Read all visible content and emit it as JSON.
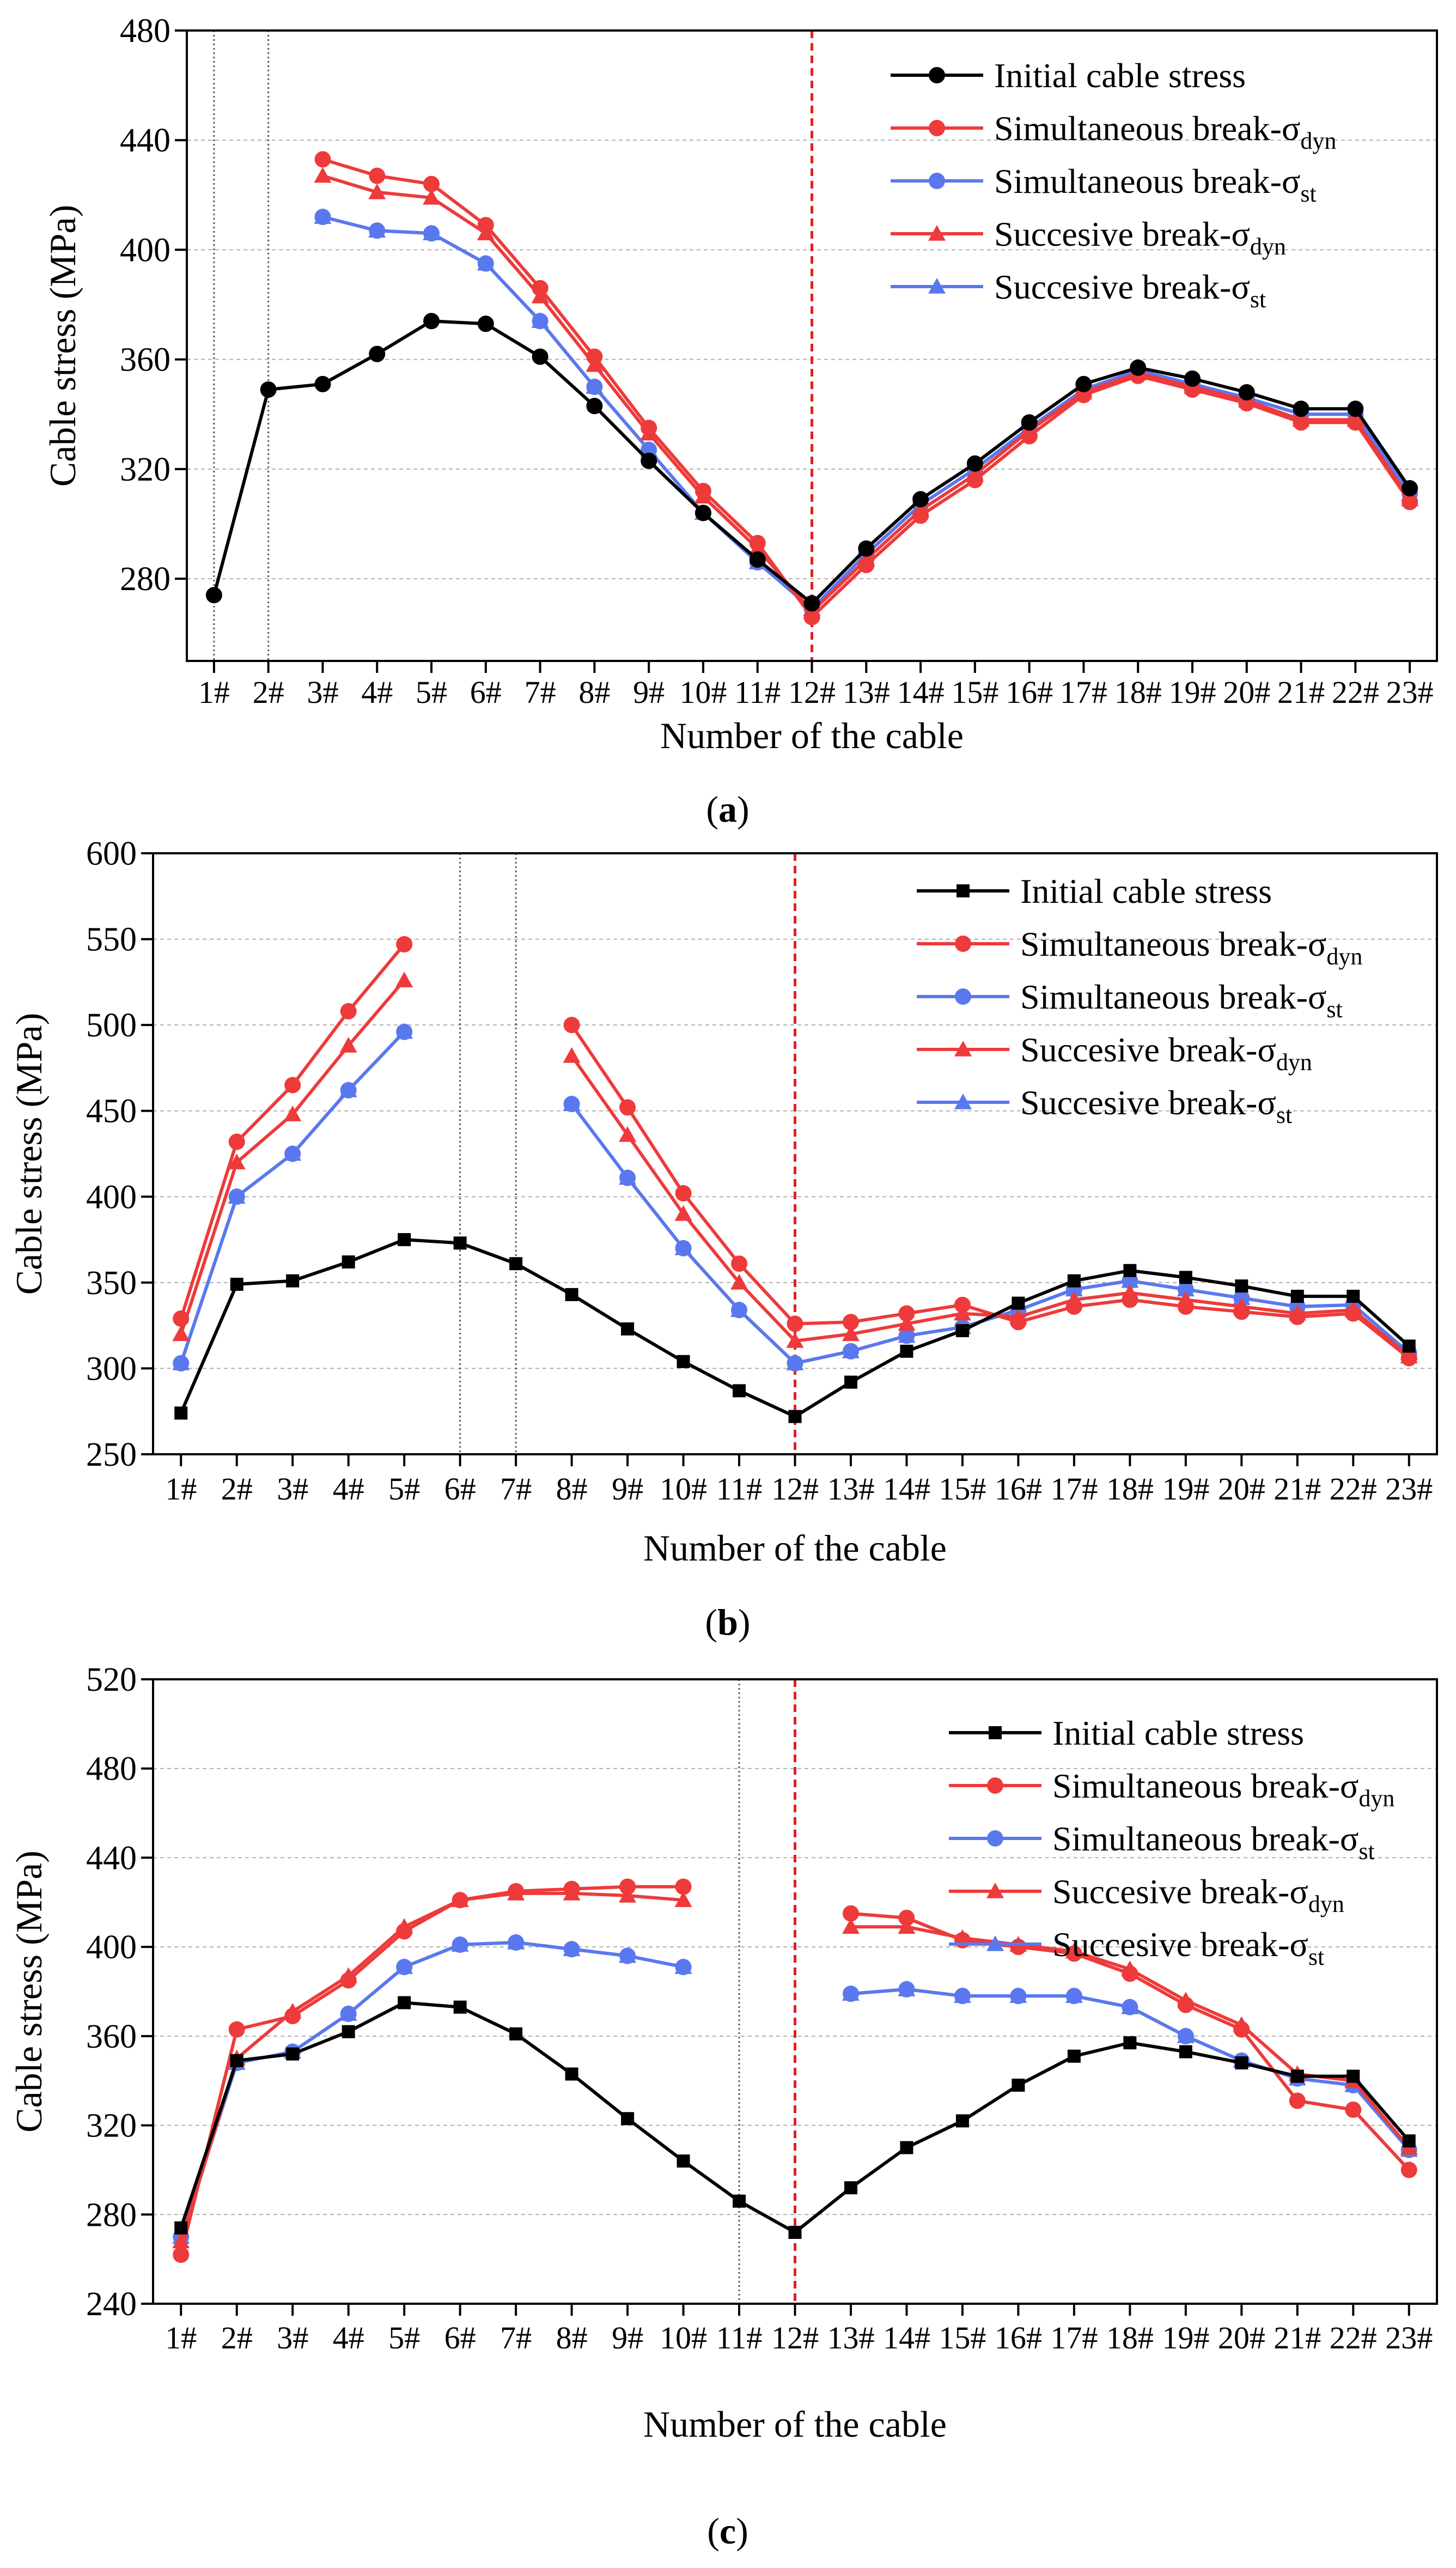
{
  "colors": {
    "initial": "#000000",
    "dyn": "#ee3a3a",
    "st": "#5a78ee",
    "axis": "#000000",
    "grid": "#b0b0b0",
    "broken_marker": "#555555",
    "failure_marker": "#e02020"
  },
  "chart_data": [
    {
      "type": "line",
      "panel_label": "a",
      "xlabel": "Number of the cable",
      "ylabel": "Cable stress (MPa)",
      "ylim": [
        250,
        480
      ],
      "yticks": [
        280,
        320,
        360,
        400,
        440,
        480
      ],
      "categories": [
        "1#",
        "2#",
        "3#",
        "4#",
        "5#",
        "6#",
        "7#",
        "8#",
        "9#",
        "10#",
        "11#",
        "12#",
        "13#",
        "14#",
        "15#",
        "16#",
        "17#",
        "18#",
        "19#",
        "20#",
        "21#",
        "22#",
        "23#"
      ],
      "broken_cable_markers": [
        "1#",
        "2#"
      ],
      "failure_cable_marker": "12#",
      "legend_position": "top-right",
      "legend": [
        {
          "label": "Initial cable stress",
          "series": "initial"
        },
        {
          "label_main": "Simultaneous break-σ",
          "label_sub": "dyn",
          "series": "sim_dyn"
        },
        {
          "label_main": "Simultaneous break-σ",
          "label_sub": "st",
          "series": "sim_st"
        },
        {
          "label_main": "Succesive break-σ",
          "label_sub": "dyn",
          "series": "suc_dyn"
        },
        {
          "label_main": "Succesive break-σ",
          "label_sub": "st",
          "series": "suc_st"
        }
      ],
      "series": [
        {
          "name": "Initial cable stress",
          "key": "initial",
          "marker": "circle",
          "color": "#000000",
          "values": [
            274,
            349,
            351,
            362,
            374,
            373,
            361,
            343,
            323,
            304,
            287,
            271,
            291,
            309,
            322,
            337,
            351,
            357,
            353,
            348,
            342,
            342,
            313
          ]
        },
        {
          "name": "Simultaneous break-σdyn",
          "key": "sim_dyn",
          "marker": "circle",
          "color": "#ee3a3a",
          "values": [
            null,
            null,
            433,
            427,
            424,
            409,
            386,
            361,
            335,
            312,
            293,
            266,
            285,
            303,
            316,
            332,
            347,
            354,
            349,
            344,
            337,
            337,
            308
          ]
        },
        {
          "name": "Simultaneous break-σst",
          "key": "sim_st",
          "marker": "circle",
          "color": "#5a78ee",
          "values": [
            null,
            null,
            412,
            407,
            406,
            395,
            374,
            350,
            327,
            304,
            286,
            269,
            289,
            307,
            320,
            335,
            349,
            356,
            351,
            346,
            340,
            340,
            311
          ]
        },
        {
          "name": "Succesive break-σdyn",
          "key": "suc_dyn",
          "marker": "triangle",
          "color": "#ee3a3a",
          "values": [
            null,
            null,
            427,
            421,
            419,
            406,
            383,
            358,
            333,
            310,
            291,
            268,
            287,
            305,
            318,
            334,
            348,
            355,
            350,
            345,
            338,
            338,
            309
          ]
        },
        {
          "name": "Succesive break-σst",
          "key": "suc_st",
          "marker": "triangle",
          "color": "#5a78ee",
          "values": [
            null,
            null,
            412,
            407,
            406,
            395,
            374,
            350,
            327,
            304,
            286,
            269,
            289,
            307,
            320,
            335,
            349,
            356,
            351,
            346,
            340,
            340,
            311
          ]
        }
      ]
    },
    {
      "type": "line",
      "panel_label": "b",
      "xlabel": "Number of the cable",
      "ylabel": "Cable stress (MPa)",
      "ylim": [
        250,
        600
      ],
      "yticks": [
        250,
        300,
        350,
        400,
        450,
        500,
        550,
        600
      ],
      "categories": [
        "1#",
        "2#",
        "3#",
        "4#",
        "5#",
        "6#",
        "7#",
        "8#",
        "9#",
        "10#",
        "11#",
        "12#",
        "13#",
        "14#",
        "15#",
        "16#",
        "17#",
        "18#",
        "19#",
        "20#",
        "21#",
        "22#",
        "23#"
      ],
      "broken_cable_markers": [
        "6#",
        "7#"
      ],
      "failure_cable_marker": "12#",
      "legend_position": "top-right",
      "legend": [
        {
          "label": "Initial cable stress",
          "series": "initial"
        },
        {
          "label_main": "Simultaneous break-σ",
          "label_sub": "dyn",
          "series": "sim_dyn"
        },
        {
          "label_main": "Simultaneous break-σ",
          "label_sub": "st",
          "series": "sim_st"
        },
        {
          "label_main": "Succesive break-σ",
          "label_sub": "dyn",
          "series": "suc_dyn"
        },
        {
          "label_main": "Succesive break-σ",
          "label_sub": "st",
          "series": "suc_st"
        }
      ],
      "series": [
        {
          "name": "Initial cable stress",
          "key": "initial",
          "marker": "square",
          "color": "#000000",
          "values": [
            274,
            349,
            351,
            362,
            375,
            373,
            361,
            343,
            323,
            304,
            287,
            272,
            292,
            310,
            322,
            338,
            351,
            357,
            353,
            348,
            342,
            342,
            313
          ]
        },
        {
          "name": "Simultaneous break-σdyn",
          "key": "sim_dyn",
          "marker": "circle",
          "color": "#ee3a3a",
          "values": [
            329,
            432,
            465,
            508,
            547,
            null,
            null,
            500,
            452,
            402,
            361,
            326,
            327,
            332,
            337,
            327,
            336,
            340,
            336,
            333,
            330,
            332,
            306
          ]
        },
        {
          "name": "Simultaneous break-σst",
          "key": "sim_st",
          "marker": "circle",
          "color": "#5a78ee",
          "values": [
            303,
            400,
            425,
            462,
            496,
            null,
            null,
            454,
            411,
            370,
            334,
            303,
            310,
            319,
            324,
            334,
            346,
            351,
            346,
            341,
            336,
            337,
            309
          ]
        },
        {
          "name": "Succesive break-σdyn",
          "key": "suc_dyn",
          "marker": "triangle",
          "color": "#ee3a3a",
          "values": [
            320,
            420,
            448,
            488,
            526,
            null,
            null,
            482,
            436,
            390,
            350,
            316,
            320,
            326,
            332,
            330,
            340,
            344,
            340,
            336,
            332,
            334,
            307
          ]
        },
        {
          "name": "Succesive break-σst",
          "key": "suc_st",
          "marker": "triangle",
          "color": "#5a78ee",
          "values": [
            303,
            400,
            425,
            462,
            496,
            null,
            null,
            454,
            411,
            370,
            334,
            303,
            310,
            319,
            324,
            334,
            346,
            351,
            346,
            341,
            336,
            337,
            309
          ]
        }
      ]
    },
    {
      "type": "line",
      "panel_label": "c",
      "xlabel": "Number of the cable",
      "ylabel": "Cable stress (MPa)",
      "ylim": [
        240,
        520
      ],
      "yticks": [
        240,
        280,
        320,
        360,
        400,
        440,
        480,
        520
      ],
      "categories": [
        "1#",
        "2#",
        "3#",
        "4#",
        "5#",
        "6#",
        "7#",
        "8#",
        "9#",
        "10#",
        "11#",
        "12#",
        "13#",
        "14#",
        "15#",
        "16#",
        "17#",
        "18#",
        "19#",
        "20#",
        "21#",
        "22#",
        "23#"
      ],
      "broken_cable_markers": [
        "11#"
      ],
      "failure_cable_marker": "12#",
      "legend_position": "top-right",
      "legend": [
        {
          "label": "Initial cable stress",
          "series": "initial"
        },
        {
          "label_main": "Simultaneous break-σ",
          "label_sub": "dyn",
          "series": "sim_dyn"
        },
        {
          "label_main": "Simultaneous break-σ",
          "label_sub": "st",
          "series": "sim_st"
        },
        {
          "label_main": "Succesive break-σ",
          "label_sub": "dyn",
          "series": "suc_dyn"
        },
        {
          "label_main": "Succesive break-σ",
          "label_sub": "st",
          "series": "suc_st"
        }
      ],
      "series": [
        {
          "name": "Initial cable stress",
          "key": "initial",
          "marker": "square",
          "color": "#000000",
          "values": [
            274,
            349,
            352,
            362,
            375,
            373,
            361,
            343,
            323,
            304,
            286,
            272,
            292,
            310,
            322,
            338,
            351,
            357,
            353,
            348,
            342,
            342,
            313
          ]
        },
        {
          "name": "Simultaneous break-σdyn",
          "key": "sim_dyn",
          "marker": "circle",
          "color": "#ee3a3a",
          "values": [
            262,
            363,
            369,
            385,
            407,
            421,
            425,
            426,
            427,
            427,
            null,
            null,
            415,
            413,
            403,
            400,
            397,
            388,
            374,
            363,
            331,
            327,
            300
          ]
        },
        {
          "name": "Simultaneous break-σst",
          "key": "sim_st",
          "marker": "circle",
          "color": "#5a78ee",
          "values": [
            270,
            348,
            353,
            370,
            391,
            401,
            402,
            399,
            396,
            391,
            null,
            null,
            379,
            381,
            378,
            378,
            378,
            373,
            360,
            349,
            341,
            338,
            309
          ]
        },
        {
          "name": "Succesive break-σdyn",
          "key": "suc_dyn",
          "marker": "triangle",
          "color": "#ee3a3a",
          "values": [
            268,
            350,
            371,
            387,
            409,
            421,
            424,
            424,
            423,
            421,
            null,
            null,
            409,
            409,
            404,
            401,
            398,
            390,
            376,
            365,
            343,
            340,
            310
          ]
        },
        {
          "name": "Succesive break-σst",
          "key": "suc_st",
          "marker": "triangle",
          "color": "#5a78ee",
          "values": [
            270,
            348,
            353,
            370,
            391,
            401,
            402,
            399,
            396,
            391,
            null,
            null,
            379,
            381,
            378,
            378,
            378,
            373,
            360,
            349,
            341,
            338,
            309
          ]
        }
      ]
    }
  ]
}
